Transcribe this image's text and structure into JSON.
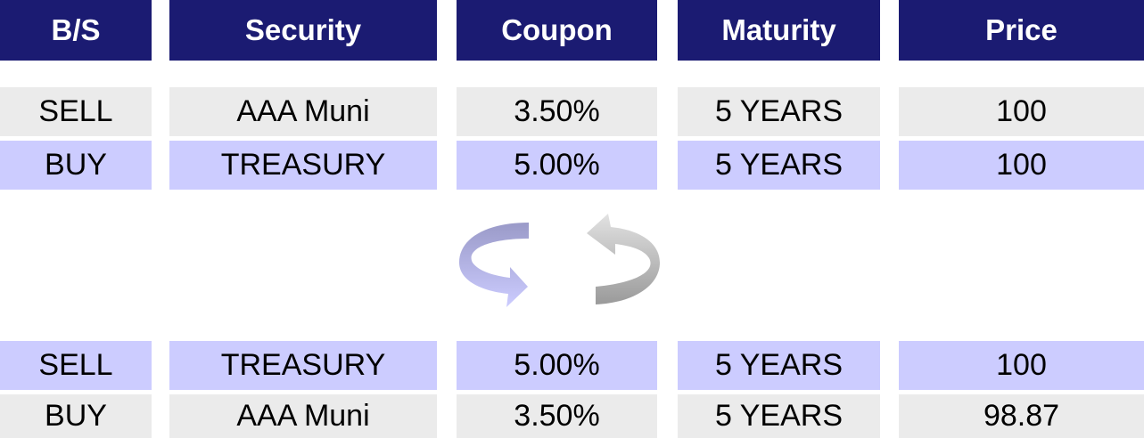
{
  "table": {
    "header": [
      "B/S",
      "Security",
      "Coupon",
      "Maturity",
      "Price"
    ],
    "rows": [
      [
        "SELL",
        "AAA Muni",
        "3.50%",
        "5 YEARS",
        "100"
      ],
      [
        "BUY",
        "TREASURY",
        "5.00%",
        "5 YEARS",
        "100"
      ],
      [
        "SELL",
        "TREASURY",
        "5.00%",
        "5 YEARS",
        "100"
      ],
      [
        "BUY",
        "AAA Muni",
        "3.50%",
        "5 YEARS",
        "98.87"
      ]
    ]
  }
}
